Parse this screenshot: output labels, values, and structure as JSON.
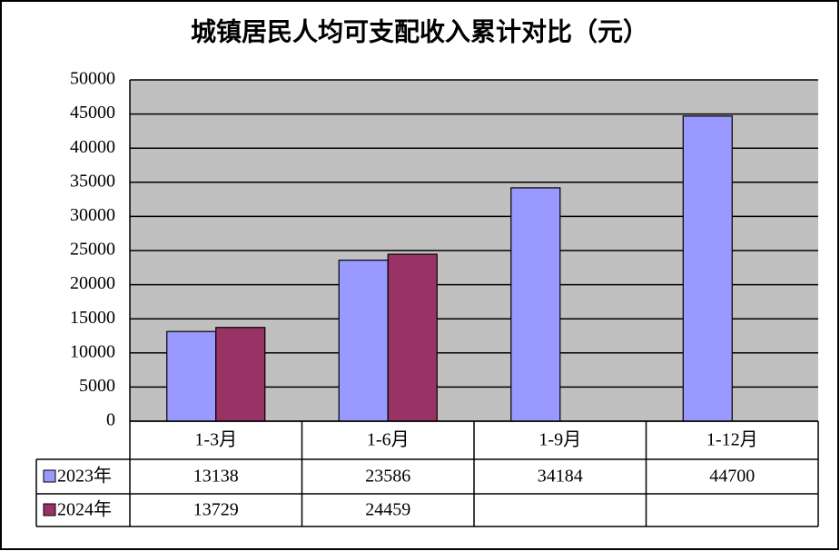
{
  "chart_data": {
    "type": "bar",
    "title": "城镇居民人均可支配收入累计对比（元）",
    "categories": [
      "1-3月",
      "1-6月",
      "1-9月",
      "1-12月"
    ],
    "series": [
      {
        "name": "2023年",
        "color": "#9999ff",
        "values": [
          13138,
          23586,
          34184,
          44700
        ]
      },
      {
        "name": "2024年",
        "color": "#993366",
        "values": [
          13729,
          24459,
          null,
          null
        ]
      }
    ],
    "ylim": [
      0,
      50000
    ],
    "yticks": [
      0,
      5000,
      10000,
      15000,
      20000,
      25000,
      30000,
      35000,
      40000,
      45000,
      50000
    ],
    "grid": true,
    "data_table": true
  }
}
